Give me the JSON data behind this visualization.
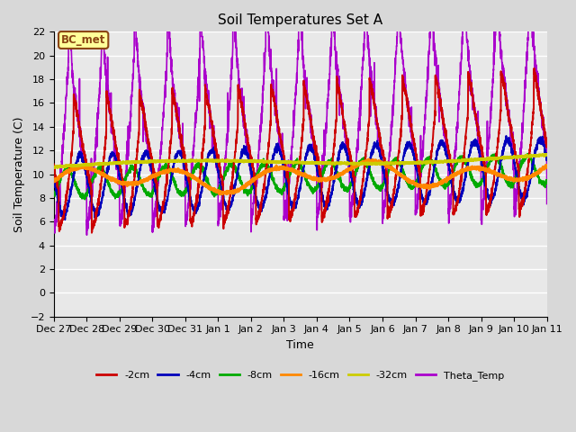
{
  "title": "Soil Temperatures Set A",
  "xlabel": "Time",
  "ylabel": "Soil Temperature (C)",
  "ylim": [
    -2,
    22
  ],
  "fig_bg": "#d8d8d8",
  "plot_bg": "#e8e8e8",
  "annotation_text": "BC_met",
  "annotation_bg": "#ffff99",
  "annotation_border": "#8b4513",
  "series": {
    "2cm": {
      "color": "#cc0000",
      "lw": 1.4
    },
    "4cm": {
      "color": "#0000bb",
      "lw": 1.4
    },
    "8cm": {
      "color": "#00aa00",
      "lw": 1.4
    },
    "16cm": {
      "color": "#ff8800",
      "lw": 2.0
    },
    "32cm": {
      "color": "#cccc00",
      "lw": 2.0
    },
    "Theta": {
      "color": "#aa00cc",
      "lw": 1.2
    }
  },
  "legend_entries": [
    "-2cm",
    "-4cm",
    "-8cm",
    "-16cm",
    "-32cm",
    "Theta_Temp"
  ],
  "legend_colors": [
    "#cc0000",
    "#0000bb",
    "#00aa00",
    "#ff8800",
    "#cccc00",
    "#aa00cc"
  ],
  "tick_labels": [
    "Dec 27",
    "Dec 28",
    "Dec 29",
    "Dec 30",
    "Dec 31",
    "Jan 1",
    "Jan 2",
    "Jan 3",
    "Jan 4",
    "Jan 5",
    "Jan 6",
    "Jan 7",
    "Jan 8",
    "Jan 9",
    "Jan 10",
    "Jan 11"
  ]
}
